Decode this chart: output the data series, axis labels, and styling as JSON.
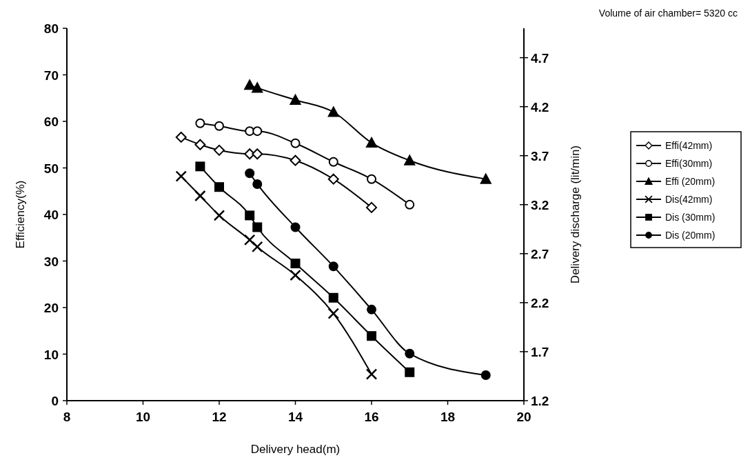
{
  "chart_data": {
    "type": "line",
    "xlabel": "Delivery head(m)",
    "ylabel": "Efficiency(%)",
    "y2label": "Delivery discharge (lit/min)",
    "annotations": [
      "Volume of air chamber= 5320 cc"
    ],
    "xlim": [
      8,
      20
    ],
    "xticks": [
      8,
      10,
      12,
      14,
      16,
      18,
      20
    ],
    "ylim": [
      0,
      80
    ],
    "yticks": [
      0,
      10,
      20,
      30,
      40,
      50,
      60,
      70,
      80
    ],
    "y2lim": [
      1.2,
      5.0
    ],
    "y2ticks": [
      1.2,
      1.7,
      2.2,
      2.7,
      3.2,
      3.7,
      4.2,
      4.7
    ],
    "legend": "right",
    "grid": false,
    "series": [
      {
        "name": "Effi(42mm)",
        "color": "#000000",
        "marker": "diamond",
        "x": [
          11,
          11.5,
          12,
          12.8,
          13,
          14,
          15,
          16
        ],
        "values": [
          56.6,
          55.0,
          53.8,
          53.0,
          53.0,
          51.6,
          47.6,
          41.5
        ]
      },
      {
        "name": "Effi(30mm)",
        "color": "#000000",
        "marker": "circle",
        "x": [
          11.5,
          12,
          12.8,
          13,
          14,
          15,
          16,
          17
        ],
        "values": [
          59.6,
          59.0,
          57.9,
          57.9,
          55.3,
          51.3,
          47.6,
          42.1
        ]
      },
      {
        "name": "Effi (20mm)",
        "color": "#000000",
        "marker": "triangle",
        "x": [
          12.8,
          13,
          14,
          15,
          16,
          17,
          19
        ],
        "values": [
          67.8,
          67.2,
          64.6,
          62.0,
          55.4,
          51.6,
          47.6
        ]
      },
      {
        "name": "Dis(42mm)",
        "color": "#000000",
        "marker": "cross",
        "axis": "y2",
        "x": [
          11,
          11.5,
          12,
          12.8,
          13,
          14,
          15,
          16
        ],
        "values": [
          3.49,
          3.29,
          3.09,
          2.84,
          2.77,
          2.48,
          2.09,
          1.47
        ]
      },
      {
        "name": "Dis (30mm)",
        "color": "#000000",
        "marker": "square",
        "axis": "y2",
        "x": [
          11.5,
          12,
          12.8,
          13,
          14,
          15,
          16,
          17
        ],
        "values": [
          3.59,
          3.38,
          3.09,
          2.97,
          2.6,
          2.25,
          1.86,
          1.49
        ]
      },
      {
        "name": "Dis (20mm)",
        "color": "#000000",
        "marker": "circle",
        "axis": "y2",
        "x": [
          12.8,
          13,
          14,
          15,
          16,
          17,
          19
        ],
        "values": [
          3.52,
          3.41,
          2.97,
          2.57,
          2.13,
          1.68,
          1.46
        ]
      }
    ]
  }
}
